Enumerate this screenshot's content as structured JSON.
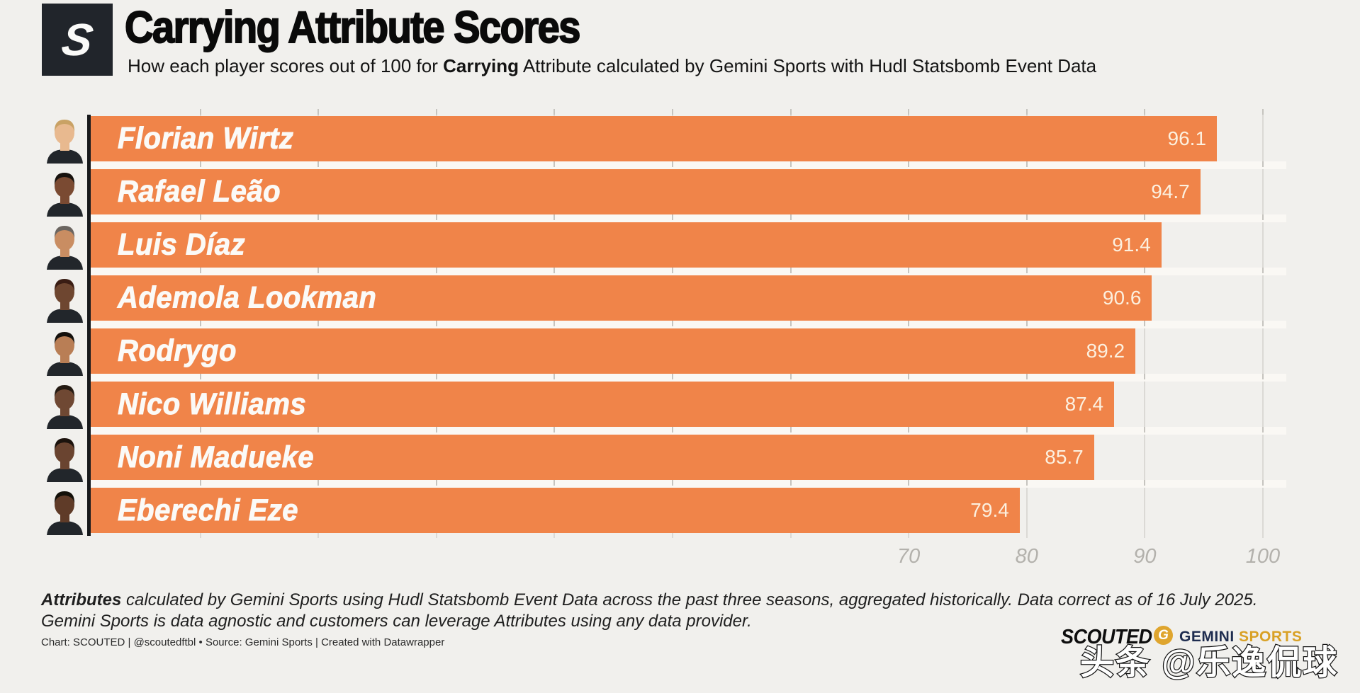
{
  "header": {
    "logo_letter": "S",
    "title": "Carrying Attribute Scores",
    "subtitle_prefix": "How each player scores out of 100 for ",
    "subtitle_bold": "Carrying",
    "subtitle_suffix": " Attribute calculated by Gemini Sports with Hudl Statsbomb Event Data"
  },
  "chart_data": {
    "type": "bar",
    "orientation": "horizontal",
    "title": "Carrying Attribute Scores",
    "subtitle": "How each player scores out of 100 for Carrying Attribute calculated by Gemini Sports with Hudl Statsbomb Event Data",
    "categories": [
      "Florian Wirtz",
      "Rafael Leão",
      "Luis Díaz",
      "Ademola Lookman",
      "Rodrygo",
      "Nico Williams",
      "Noni Madueke",
      "Eberechi Eze"
    ],
    "values": [
      96.1,
      94.7,
      91.4,
      90.6,
      89.2,
      87.4,
      85.7,
      79.4
    ],
    "xlim": [
      0,
      102
    ],
    "x_ticks": [
      70,
      80,
      90,
      100
    ],
    "gridline_step": 10,
    "grid": true,
    "legend": "none",
    "bar_color": "#F08449",
    "value_label_color": "#FCF0DF",
    "players": [
      {
        "name": "Florian Wirtz",
        "score": 96.1,
        "skin": "#E8B98F",
        "hair": "#C9A265"
      },
      {
        "name": "Rafael Leão",
        "score": 94.7,
        "skin": "#7A4A32",
        "hair": "#17120E"
      },
      {
        "name": "Luis Díaz",
        "score": 91.4,
        "skin": "#C98D62",
        "hair": "#6B6560"
      },
      {
        "name": "Ademola Lookman",
        "score": 90.6,
        "skin": "#6E4630",
        "hair": "#3A1D14"
      },
      {
        "name": "Rodrygo",
        "score": 89.2,
        "skin": "#B97E55",
        "hair": "#14100C"
      },
      {
        "name": "Nico Williams",
        "score": 87.4,
        "skin": "#6F4833",
        "hair": "#241A12"
      },
      {
        "name": "Noni Madueke",
        "score": 85.7,
        "skin": "#6A4430",
        "hair": "#1C130D"
      },
      {
        "name": "Eberechi Eze",
        "score": 79.4,
        "skin": "#5F3B28",
        "hair": "#131009"
      }
    ]
  },
  "footer": {
    "note_bold": "Attributes",
    "note_rest": " calculated by Gemini Sports using Hudl Statsbomb Event Data across the past three seasons, aggregated historically. Data correct as of 16 July 2025.",
    "note_line2": "Gemini Sports is data agnostic and customers can leverage Attributes using any data provider.",
    "credit": "Chart: SCOUTED | @scoutedftbl • Source: Gemini Sports | Created with Datawrapper"
  },
  "branding": {
    "scouted_wordmark": "SCOUTED",
    "gemini_g": "G",
    "gemini_word": "GEMINI",
    "sports_word": "SPORTS",
    "watermark": "头条 @乐逸侃球"
  }
}
